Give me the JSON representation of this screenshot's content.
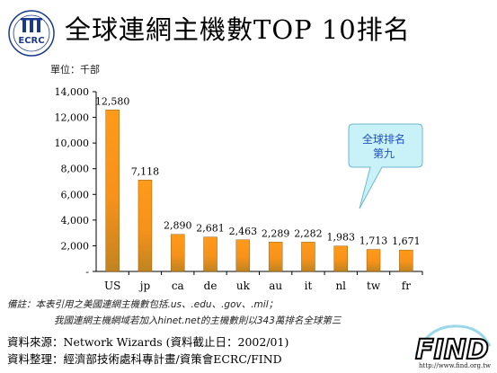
{
  "header": {
    "title": "全球連網主機數TOP 10排名",
    "logo_text": "ECRC"
  },
  "colors": {
    "bar_top": "#ff9a1a",
    "bar_bottom": "#c98a1e",
    "axis": "#000000",
    "callout_fill": "#c8f2f8",
    "callout_text": "#1f4fbf",
    "logo_blue": "#1b3a8c"
  },
  "chart_data": {
    "type": "bar",
    "unit_label": "單位：千部",
    "categories": [
      "US",
      "jp",
      "ca",
      "de",
      "uk",
      "au",
      "it",
      "nl",
      "tw",
      "fr"
    ],
    "values": [
      12580,
      7118,
      2890,
      2681,
      2463,
      2289,
      2282,
      1983,
      1713,
      1671
    ],
    "value_labels": [
      "12,580",
      "7,118",
      "2,890",
      "2,681",
      "2,463",
      "2,289",
      "2,282",
      "1,983",
      "1,713",
      "1,671"
    ],
    "ylim": [
      0,
      14000
    ],
    "yticks": [
      0,
      2000,
      4000,
      6000,
      8000,
      10000,
      12000,
      14000
    ],
    "ytick_labels": [
      "-",
      "2,000",
      "4,000",
      "6,000",
      "8,000",
      "10,000",
      "12,000",
      "14,000"
    ],
    "grid": false,
    "title": "",
    "xlabel": "",
    "ylabel": ""
  },
  "callout": {
    "line1": "全球排名",
    "line2": "第九"
  },
  "notes": {
    "line1": "備註：本表引用之美國連網主機數包括.us、.edu、.gov、.mil；",
    "line2": "我國連網主機網域若加入hinet.net的主機數則以343萬排名全球第三"
  },
  "footer": {
    "source": "資料來源：Network Wizards (資料截止日：2002/01)",
    "compiler": "資料整理：經濟部技術處科專計畫/資策會ECRC/FIND",
    "find_logo": "FIND",
    "find_url": "http://www.find.org.tw"
  }
}
